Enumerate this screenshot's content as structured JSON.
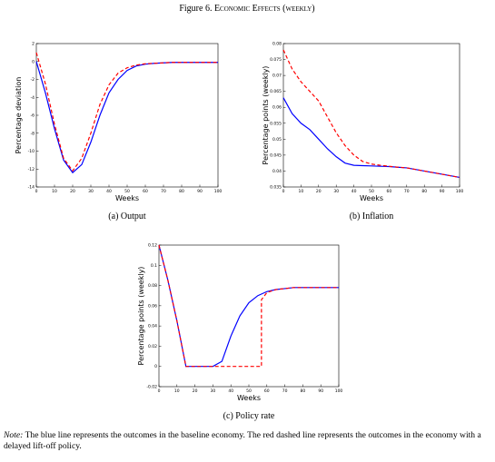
{
  "figure_label": "Figure 6.",
  "figure_title": "Economic Effects (weekly)",
  "note_label": "Note:",
  "note": "The blue line represents the outcomes in the baseline economy. The red dashed line represents the outcomes in the economy with a delayed lift-off policy.",
  "chart_data": [
    {
      "type": "line",
      "caption": "(a) Output",
      "x_label": "Weeks",
      "y_label": "Percentage deviation",
      "x": [
        0,
        5,
        10,
        15,
        20,
        25,
        30,
        35,
        40,
        45,
        50,
        55,
        60,
        65,
        70,
        75,
        80,
        85,
        90,
        95,
        100
      ],
      "xlim": [
        0,
        100
      ],
      "xticks": [
        0,
        10,
        20,
        30,
        40,
        50,
        60,
        70,
        80,
        90,
        100
      ],
      "ylim": [
        -14,
        2
      ],
      "yticks": [
        -14,
        -12,
        -10,
        -8,
        -6,
        -4,
        -2,
        0,
        2
      ],
      "series": [
        {
          "color": "#0000ff",
          "style": "solid",
          "values": [
            0,
            -3.5,
            -7.5,
            -11,
            -12.4,
            -11.5,
            -9,
            -6,
            -3.5,
            -2,
            -1,
            -0.5,
            -0.3,
            -0.2,
            -0.15,
            -0.1,
            -0.1,
            -0.1,
            -0.1,
            -0.1,
            -0.1
          ]
        },
        {
          "color": "#ff0000",
          "style": "dashed",
          "values": [
            1,
            -2.5,
            -7,
            -10.8,
            -12.2,
            -10.8,
            -8,
            -4.8,
            -2.6,
            -1.3,
            -0.7,
            -0.4,
            -0.25,
            -0.2,
            -0.15,
            -0.1,
            -0.1,
            -0.1,
            -0.1,
            -0.1,
            -0.1
          ]
        }
      ]
    },
    {
      "type": "line",
      "caption": "(b) Inflation",
      "x_label": "Weeks",
      "y_label": "Percentage points (weekly)",
      "x": [
        0,
        5,
        10,
        15,
        20,
        25,
        30,
        35,
        40,
        45,
        50,
        55,
        60,
        65,
        70,
        75,
        80,
        85,
        90,
        95,
        100
      ],
      "xlim": [
        0,
        100
      ],
      "xticks": [
        0,
        10,
        20,
        30,
        40,
        50,
        60,
        70,
        80,
        90,
        100
      ],
      "ylim": [
        0.035,
        0.08
      ],
      "yticks": [
        0.035,
        0.04,
        0.045,
        0.05,
        0.055,
        0.06,
        0.065,
        0.07,
        0.075,
        0.08
      ],
      "series": [
        {
          "color": "#0000ff",
          "style": "solid",
          "values": [
            0.063,
            0.058,
            0.055,
            0.053,
            0.05,
            0.047,
            0.0445,
            0.0425,
            0.0418,
            0.0417,
            0.0416,
            0.0415,
            0.0414,
            0.0412,
            0.041,
            0.0405,
            0.04,
            0.0395,
            0.039,
            0.0385,
            0.038
          ]
        },
        {
          "color": "#ff0000",
          "style": "dashed",
          "values": [
            0.078,
            0.072,
            0.068,
            0.065,
            0.062,
            0.057,
            0.052,
            0.048,
            0.045,
            0.043,
            0.0422,
            0.0418,
            0.0415,
            0.0412,
            0.041,
            0.0405,
            0.04,
            0.0395,
            0.039,
            0.0385,
            0.038
          ]
        }
      ]
    },
    {
      "type": "line",
      "caption": "(c) Policy rate",
      "x_label": "Weeks",
      "y_label": "Percentage points (weekly)",
      "x": [
        0,
        5,
        10,
        15,
        20,
        25,
        30,
        35,
        40,
        45,
        50,
        55,
        60,
        65,
        70,
        75,
        80,
        85,
        90,
        95,
        100
      ],
      "xlim": [
        0,
        100
      ],
      "xticks": [
        0,
        10,
        20,
        30,
        40,
        50,
        60,
        70,
        80,
        90,
        100
      ],
      "ylim": [
        -0.02,
        0.12
      ],
      "yticks": [
        -0.02,
        0,
        0.02,
        0.04,
        0.06,
        0.08,
        0.1,
        0.12
      ],
      "series": [
        {
          "color": "#0000ff",
          "style": "solid",
          "values": [
            0.12,
            0.085,
            0.045,
            0,
            0,
            0,
            0,
            0.005,
            0.03,
            0.05,
            0.063,
            0.07,
            0.074,
            0.076,
            0.077,
            0.078,
            0.078,
            0.078,
            0.078,
            0.078,
            0.078
          ]
        },
        {
          "color": "#ff0000",
          "style": "dashed",
          "x": [
            0,
            5,
            10,
            15,
            20,
            25,
            30,
            35,
            40,
            45,
            50,
            55,
            57,
            57,
            60,
            65,
            70,
            75,
            80,
            85,
            90,
            95,
            100
          ],
          "values": [
            0.12,
            0.085,
            0.045,
            0,
            0,
            0,
            0,
            0,
            0,
            0,
            0,
            0,
            0,
            0.066,
            0.073,
            0.076,
            0.077,
            0.078,
            0.078,
            0.078,
            0.078,
            0.078,
            0.078
          ]
        }
      ]
    }
  ]
}
